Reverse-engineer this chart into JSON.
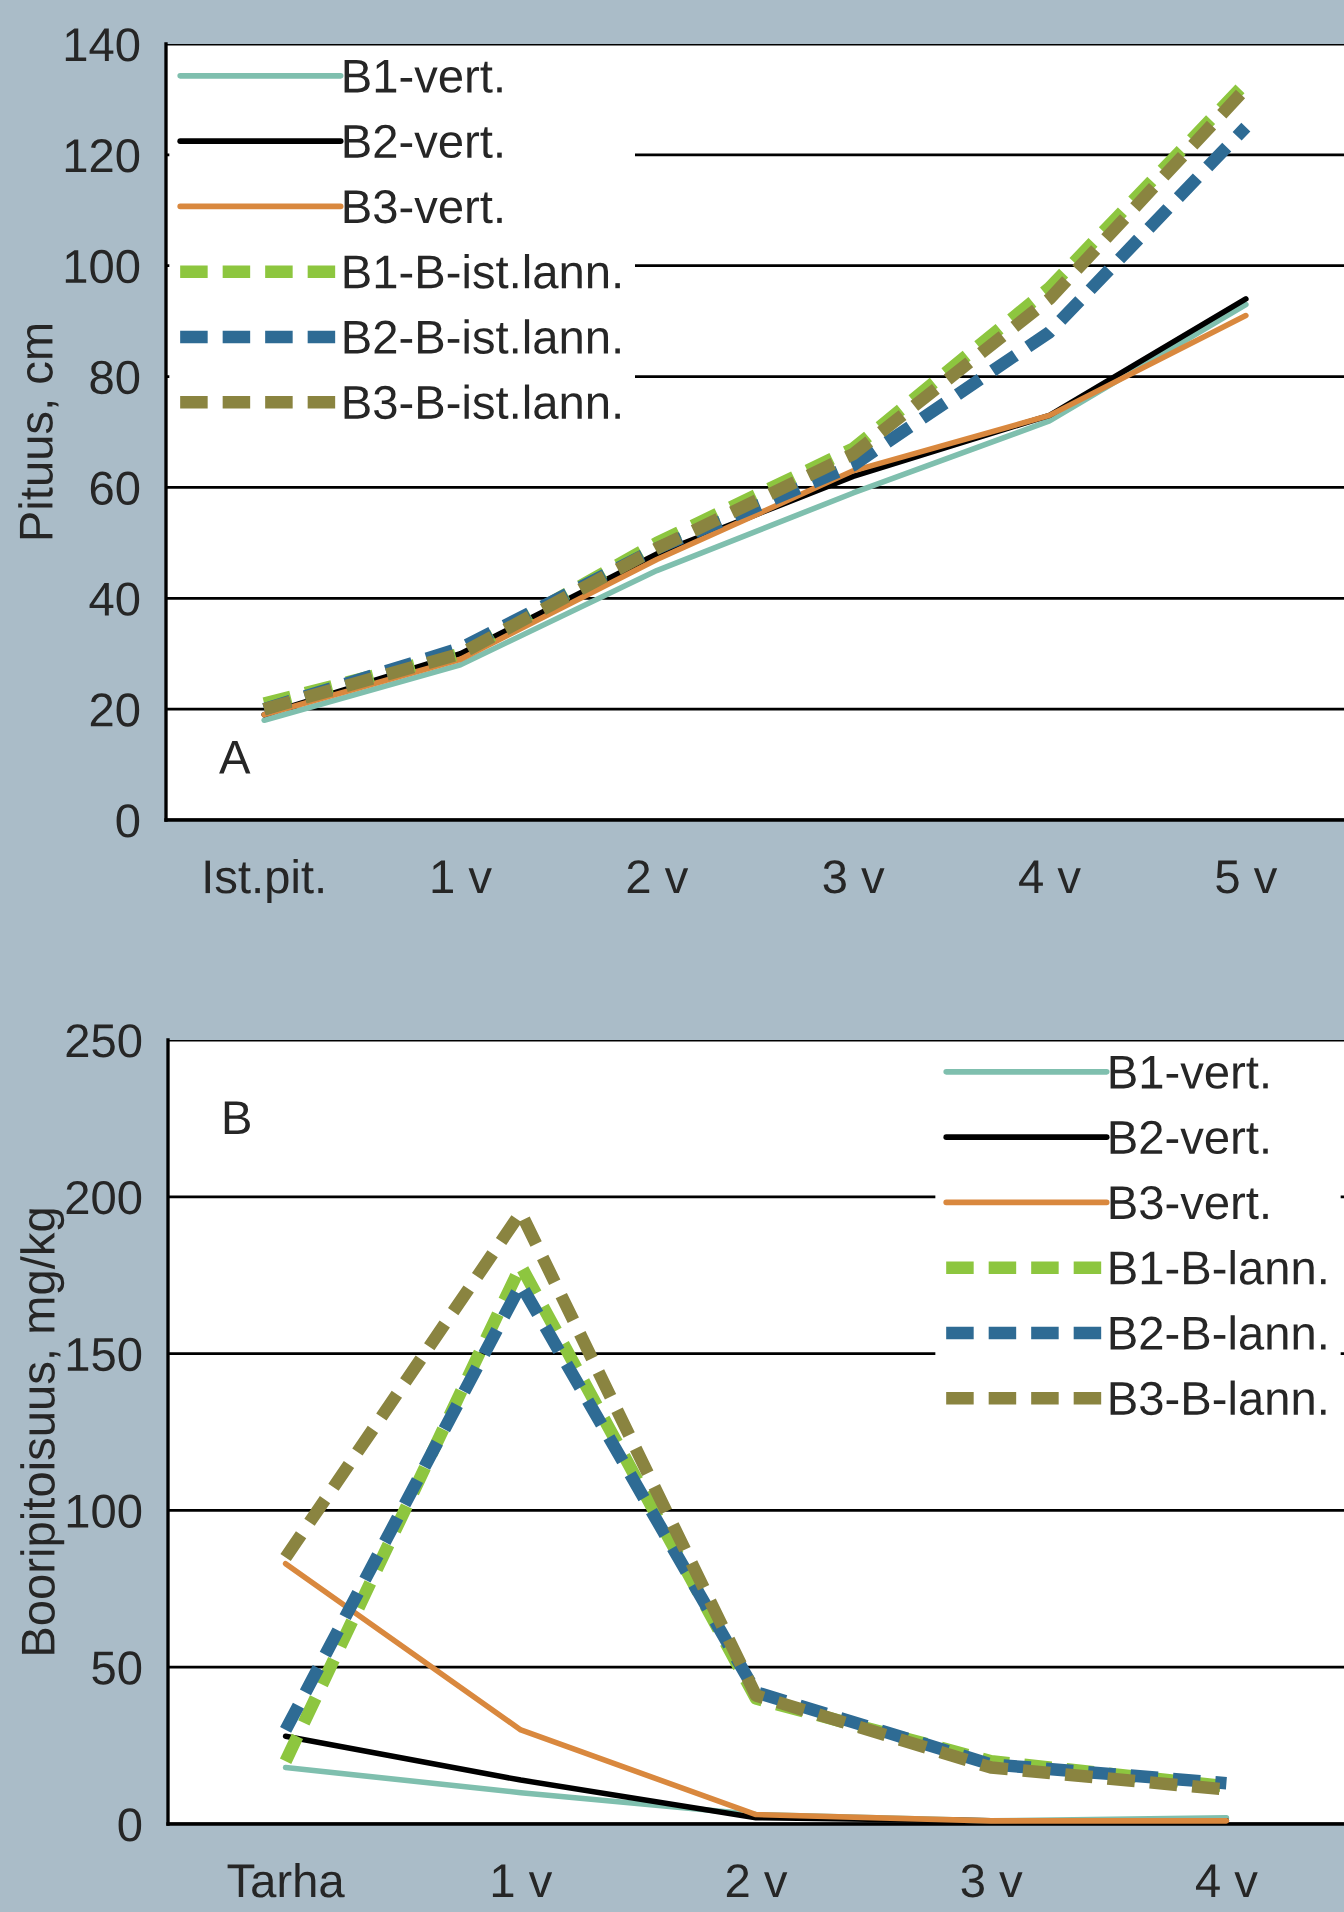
{
  "chart_data": [
    {
      "type": "line",
      "ylabel": "Pituus, cm",
      "annotations": [
        "A"
      ],
      "categories": [
        "Ist.pit.",
        "1 v",
        "2 v",
        "3 v",
        "4 v",
        "5 v"
      ],
      "ylim": [
        0,
        140
      ],
      "yticks": [
        0,
        20,
        40,
        60,
        80,
        100,
        120,
        140
      ],
      "grid": "y",
      "legend": "top left",
      "series": [
        {
          "name": "B1-vert.",
          "color": "#7fbfae",
          "line_style": "solid",
          "values": [
            18,
            28,
            45,
            59,
            72,
            93
          ]
        },
        {
          "name": "B2-vert.",
          "color": "#000000",
          "line_style": "solid",
          "values": [
            19,
            30,
            48,
            62,
            73,
            94
          ]
        },
        {
          "name": "B3-vert.",
          "color": "#d9883e",
          "line_style": "solid",
          "values": [
            19,
            29,
            47,
            63,
            73,
            91
          ]
        },
        {
          "name": "B1-B-ist.lann.",
          "color": "#8dc63f",
          "line_style": "dashed",
          "values": [
            21,
            30,
            50,
            67,
            96,
            133
          ]
        },
        {
          "name": "B2-B-ist.lann.",
          "color": "#2e6b94",
          "line_style": "dashed",
          "values": [
            20,
            31,
            49,
            64,
            88,
            125
          ]
        },
        {
          "name": "B3-B-ist.lann.",
          "color": "#8a8440",
          "line_style": "dashed",
          "values": [
            20,
            30,
            49,
            66,
            94,
            132
          ]
        }
      ]
    },
    {
      "type": "line",
      "ylabel": "Booripitoisuus, mg/kg",
      "annotations": [
        "B"
      ],
      "categories": [
        "Tarha",
        "1 v",
        "2 v",
        "3 v",
        "4 v"
      ],
      "ylim": [
        0,
        250
      ],
      "yticks": [
        0,
        50,
        100,
        150,
        200,
        250
      ],
      "grid": "y",
      "legend": "top right",
      "series": [
        {
          "name": "B1-vert.",
          "color": "#7fbfae",
          "line_style": "solid",
          "values": [
            18,
            10,
            3,
            1,
            2
          ]
        },
        {
          "name": "B2-vert.",
          "color": "#000000",
          "line_style": "solid",
          "values": [
            28,
            14,
            2,
            1,
            1
          ]
        },
        {
          "name": "B3-vert.",
          "color": "#d9883e",
          "line_style": "solid",
          "values": [
            83,
            30,
            3,
            1,
            1
          ]
        },
        {
          "name": "B1-B-lann.",
          "color": "#8dc63f",
          "line_style": "dashed",
          "values": [
            20,
            178,
            40,
            20,
            12
          ]
        },
        {
          "name": "B2-B-lann.",
          "color": "#2e6b94",
          "line_style": "dashed",
          "values": [
            30,
            172,
            42,
            19,
            13
          ]
        },
        {
          "name": "B3-B-lann.",
          "color": "#8a8440",
          "line_style": "dashed",
          "values": [
            85,
            195,
            41,
            18,
            11
          ]
        }
      ]
    }
  ]
}
